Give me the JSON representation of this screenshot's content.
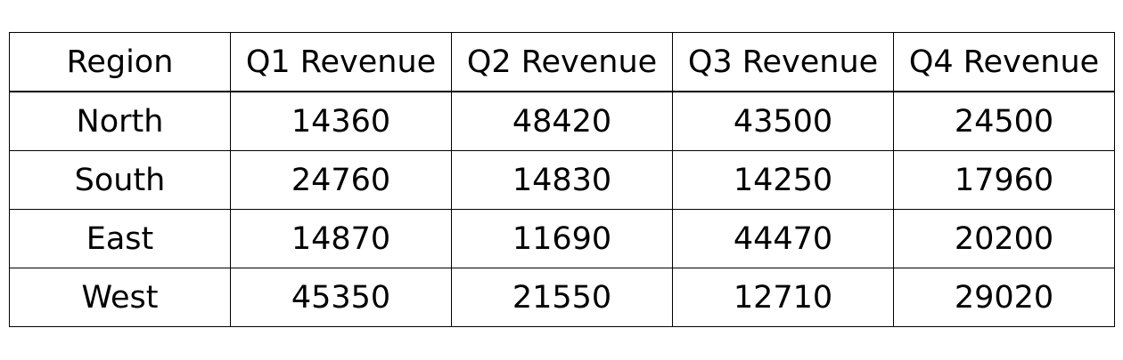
{
  "chart_data": {
    "type": "table",
    "columns": [
      "Region",
      "Q1 Revenue",
      "Q2 Revenue",
      "Q3 Revenue",
      "Q4 Revenue"
    ],
    "rows": [
      [
        "North",
        14360,
        48420,
        43500,
        24500
      ],
      [
        "South",
        24760,
        14830,
        14250,
        17960
      ],
      [
        "East",
        14870,
        11690,
        44470,
        20200
      ],
      [
        "West",
        45350,
        21550,
        12710,
        29020
      ]
    ]
  }
}
